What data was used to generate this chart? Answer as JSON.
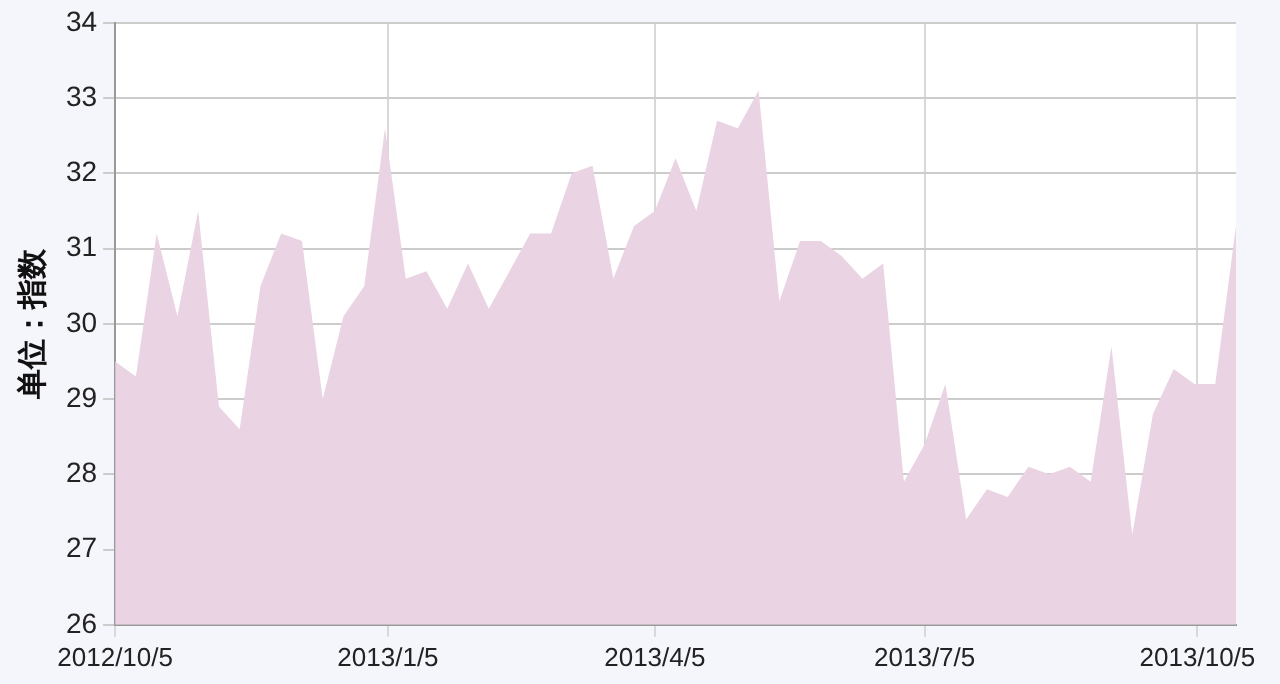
{
  "chart_data": {
    "type": "area",
    "ylabel": "单位：指数",
    "x": [
      "2012-10-05",
      "2012-10-12",
      "2012-10-19",
      "2012-10-26",
      "2012-11-02",
      "2012-11-09",
      "2012-11-16",
      "2012-11-23",
      "2012-11-30",
      "2012-12-07",
      "2012-12-14",
      "2012-12-21",
      "2012-12-28",
      "2013-01-04",
      "2013-01-11",
      "2013-01-18",
      "2013-01-25",
      "2013-02-01",
      "2013-02-08",
      "2013-02-15",
      "2013-02-22",
      "2013-03-01",
      "2013-03-08",
      "2013-03-15",
      "2013-03-22",
      "2013-03-29",
      "2013-04-05",
      "2013-04-12",
      "2013-04-19",
      "2013-04-26",
      "2013-05-03",
      "2013-05-10",
      "2013-05-17",
      "2013-05-24",
      "2013-05-31",
      "2013-06-07",
      "2013-06-14",
      "2013-06-21",
      "2013-06-28",
      "2013-07-05",
      "2013-07-12",
      "2013-07-19",
      "2013-07-26",
      "2013-08-02",
      "2013-08-09",
      "2013-08-16",
      "2013-08-23",
      "2013-08-30",
      "2013-09-06",
      "2013-09-13",
      "2013-09-20",
      "2013-09-27",
      "2013-10-04",
      "2013-10-11",
      "2013-10-18"
    ],
    "series": [
      {
        "color": "#ead3e3",
        "values": [
          29.5,
          29.3,
          31.2,
          30.1,
          31.5,
          28.9,
          28.6,
          30.5,
          31.2,
          31.1,
          29.0,
          30.1,
          30.5,
          32.6,
          30.6,
          30.7,
          30.2,
          30.8,
          30.2,
          30.7,
          31.2,
          31.2,
          32.0,
          32.1,
          30.6,
          31.3,
          31.5,
          32.2,
          31.5,
          32.7,
          32.6,
          33.1,
          30.3,
          31.1,
          31.1,
          30.9,
          30.6,
          30.8,
          27.9,
          28.4,
          29.2,
          27.4,
          27.8,
          27.7,
          28.1,
          28.0,
          28.1,
          27.9,
          29.7,
          27.2,
          28.8,
          29.4,
          29.2,
          29.2,
          31.3
        ]
      }
    ],
    "xlim": [
      "2012-10-05",
      "2013-10-18"
    ],
    "xticks": [
      {
        "value": "2012-10-05",
        "label": "2012/10/5"
      },
      {
        "value": "2013-01-05",
        "label": "2013/1/5"
      },
      {
        "value": "2013-04-05",
        "label": "2013/4/5"
      },
      {
        "value": "2013-07-05",
        "label": "2013/7/5"
      },
      {
        "value": "2013-10-05",
        "label": "2013/10/5"
      }
    ],
    "ylim": [
      26,
      34
    ],
    "yticks": [
      26,
      27,
      28,
      29,
      30,
      31,
      32,
      33,
      34
    ],
    "grid": true,
    "legend": false
  }
}
